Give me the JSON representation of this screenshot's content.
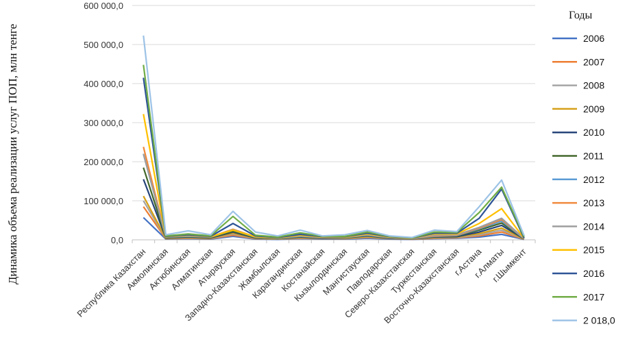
{
  "chart_data": {
    "type": "line",
    "title": "",
    "xlabel": "",
    "ylabel": "Динамика объема реализации услуг ПОП, млн тенге",
    "ylim": [
      0,
      600000
    ],
    "yticks": [
      "0,0",
      "100 000,0",
      "200 000,0",
      "300 000,0",
      "400 000,0",
      "500 000,0",
      "600 000,0"
    ],
    "grid": "horizontal",
    "legend": {
      "title": "Годы",
      "placement": "right"
    },
    "categories": [
      "Республика Казахстан",
      "Акмолинская",
      "Актюбинская",
      "Алматинская",
      "Атырауская",
      "Западно-Казахстанская",
      "Жамбылская",
      "Карагандинская",
      "Костанайская",
      "Кызылординская",
      "Мангистауская",
      "Павлодарская",
      "Северо-Казахстанская",
      "Туркестанская",
      "Восточно-Казахстанская",
      "г.Астана",
      "г.Алматы",
      "г.Шымкент"
    ],
    "series": [
      {
        "name": "2006",
        "color": "#4472C4",
        "values": [
          57000,
          2000,
          3000,
          2000,
          9000,
          2000,
          1000,
          3000,
          2000,
          2000,
          4000,
          2000,
          1000,
          3000,
          4000,
          7000,
          14000,
          1000
        ]
      },
      {
        "name": "2007",
        "color": "#ED7D31",
        "values": [
          85000,
          3000,
          4000,
          3000,
          12000,
          3000,
          2000,
          4000,
          3000,
          3000,
          6000,
          3000,
          1500,
          4000,
          5000,
          10000,
          20000,
          1500
        ]
      },
      {
        "name": "2008",
        "color": "#A5A5A5",
        "values": [
          100000,
          3500,
          5000,
          3500,
          15000,
          3500,
          2000,
          5000,
          3000,
          3500,
          7000,
          3000,
          2000,
          5000,
          6000,
          13000,
          25000,
          2000
        ]
      },
      {
        "name": "2009",
        "color": "#D4A017",
        "values": [
          112000,
          4000,
          6000,
          4000,
          17000,
          4000,
          2500,
          6000,
          3500,
          4000,
          8000,
          3500,
          2000,
          6000,
          7000,
          16000,
          30000,
          2000
        ]
      },
      {
        "name": "2010",
        "color": "#264478",
        "values": [
          155000,
          5000,
          7000,
          5000,
          20000,
          5000,
          3000,
          7000,
          4000,
          5000,
          10000,
          4000,
          2500,
          7000,
          8000,
          20000,
          37000,
          2500
        ]
      },
      {
        "name": "2011",
        "color": "#43682B",
        "values": [
          185000,
          6000,
          8000,
          6000,
          22000,
          6000,
          3500,
          8000,
          5000,
          5500,
          11000,
          5000,
          3000,
          8000,
          10000,
          25000,
          43000,
          3000
        ]
      },
      {
        "name": "2012",
        "color": "#5B9BD5",
        "values": [
          220000,
          7000,
          9000,
          7000,
          25000,
          7000,
          4000,
          9000,
          5500,
          6000,
          12000,
          5500,
          3000,
          9000,
          11000,
          28000,
          48000,
          3000
        ]
      },
      {
        "name": "2013",
        "color": "#F08A3C",
        "values": [
          238000,
          7500,
          10000,
          7500,
          27000,
          7500,
          4500,
          10000,
          6000,
          6500,
          13000,
          6000,
          3500,
          10000,
          12000,
          30000,
          52000,
          3500
        ]
      },
      {
        "name": "2014",
        "color": "#9E9E9E",
        "values": [
          220000,
          7000,
          10000,
          7000,
          26000,
          7000,
          4500,
          10000,
          6000,
          6500,
          13000,
          6000,
          3500,
          12000,
          13000,
          32000,
          55000,
          3500
        ]
      },
      {
        "name": "2015",
        "color": "#FFC000",
        "values": [
          322000,
          8000,
          12000,
          8000,
          25000,
          8000,
          5000,
          12000,
          7000,
          7000,
          15000,
          7000,
          4000,
          15000,
          15000,
          42000,
          80000,
          4000
        ]
      },
      {
        "name": "2016",
        "color": "#2E5597",
        "values": [
          415000,
          9000,
          13000,
          9000,
          42000,
          10000,
          6000,
          14000,
          8000,
          8000,
          17000,
          8000,
          4500,
          17000,
          17000,
          55000,
          130000,
          4500
        ]
      },
      {
        "name": "2017",
        "color": "#70AD47",
        "values": [
          448000,
          10000,
          15000,
          10000,
          60000,
          12000,
          7000,
          18000,
          9000,
          9000,
          20000,
          9000,
          5000,
          20000,
          19000,
          70000,
          135000,
          8000
        ]
      },
      {
        "name": "2 018,0",
        "color": "#9DC3E6",
        "values": [
          523000,
          13000,
          23000,
          13000,
          73000,
          20000,
          10000,
          25000,
          10000,
          13000,
          24000,
          10000,
          6000,
          25000,
          21000,
          85000,
          153000,
          11000
        ]
      }
    ]
  }
}
